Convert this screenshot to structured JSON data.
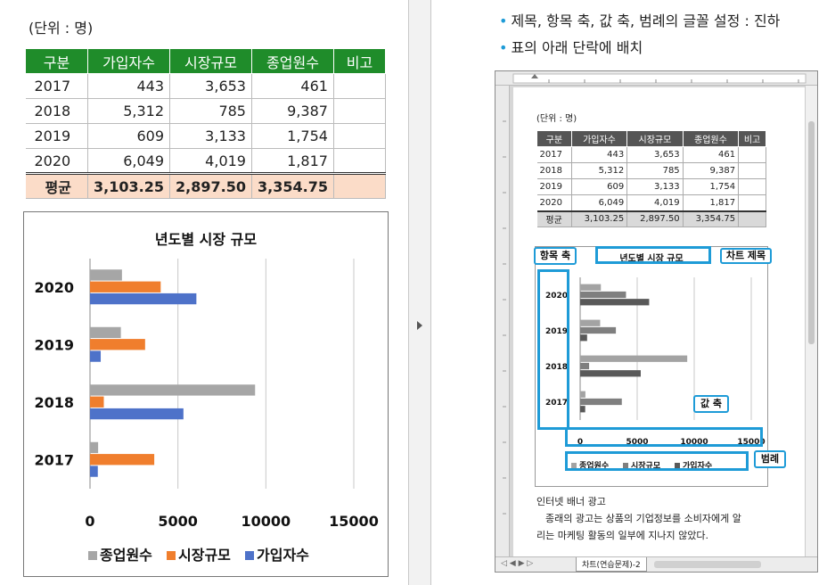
{
  "left": {
    "unit_label": "(단위 : 명)",
    "table": {
      "headers": [
        "구분",
        "가입자수",
        "시장규모",
        "종업원수",
        "비고"
      ],
      "rows": [
        [
          "2017",
          "443",
          "3,653",
          "461",
          ""
        ],
        [
          "2018",
          "5,312",
          "785",
          "9,387",
          ""
        ],
        [
          "2019",
          "609",
          "3,133",
          "1,754",
          ""
        ],
        [
          "2020",
          "6,049",
          "4,019",
          "1,817",
          ""
        ]
      ],
      "avg_row": [
        "평균",
        "3,103.25",
        "2,897.50",
        "3,354.75",
        ""
      ]
    }
  },
  "right": {
    "bullets": [
      "제목, 항목 축, 값 축, 범례의 글꼴 설정 : 진하",
      "표의 아래 단락에 배치"
    ],
    "doc": {
      "unit_label": "(단위 : 명)",
      "callouts": {
        "category_axis": "항목 축",
        "chart_title_tag": "차트 제목",
        "value_axis": "값 축",
        "legend": "범례"
      },
      "paragraph_title": "인터넷 배너 광고",
      "paragraph_lines": [
        "종래의 광고는 상품의 기업정보를 소비자에게 알",
        "리는 마케팅 활동의 일부에 지나지 않았다."
      ],
      "sheet_tab": "차트(연습문제)-2"
    }
  },
  "chart_data": [
    {
      "type": "bar",
      "orientation": "horizontal",
      "title": "년도별 시장 규모",
      "categories": [
        "2017",
        "2018",
        "2019",
        "2020"
      ],
      "series": [
        {
          "name": "종업원수",
          "values": [
            461,
            9387,
            1754,
            1817
          ],
          "color": "#a6a6a6"
        },
        {
          "name": "시장규모",
          "values": [
            3653,
            785,
            3133,
            4019
          ],
          "color": "#f07e2d"
        },
        {
          "name": "가입자수",
          "values": [
            443,
            5312,
            609,
            6049
          ],
          "color": "#4e72c9"
        }
      ],
      "x_ticks": [
        "0",
        "5000",
        "10000",
        "15000"
      ],
      "xlim": [
        0,
        15000
      ],
      "grid": true,
      "legend_position": "bottom"
    },
    {
      "type": "bar",
      "orientation": "horizontal",
      "title": "년도별 시장 규모",
      "categories": [
        "2017",
        "2018",
        "2019",
        "2020"
      ],
      "series": [
        {
          "name": "종업원수",
          "values": [
            461,
            9387,
            1754,
            1817
          ],
          "color": "#a3a3a3"
        },
        {
          "name": "시장규모",
          "values": [
            3653,
            785,
            3133,
            4019
          ],
          "color": "#7f7f7f"
        },
        {
          "name": "가입자수",
          "values": [
            443,
            5312,
            609,
            6049
          ],
          "color": "#595959"
        }
      ],
      "x_ticks": [
        "0",
        "5000",
        "10000",
        "15000"
      ],
      "xlim": [
        0,
        15000
      ],
      "grid": true,
      "legend_position": "bottom"
    }
  ]
}
